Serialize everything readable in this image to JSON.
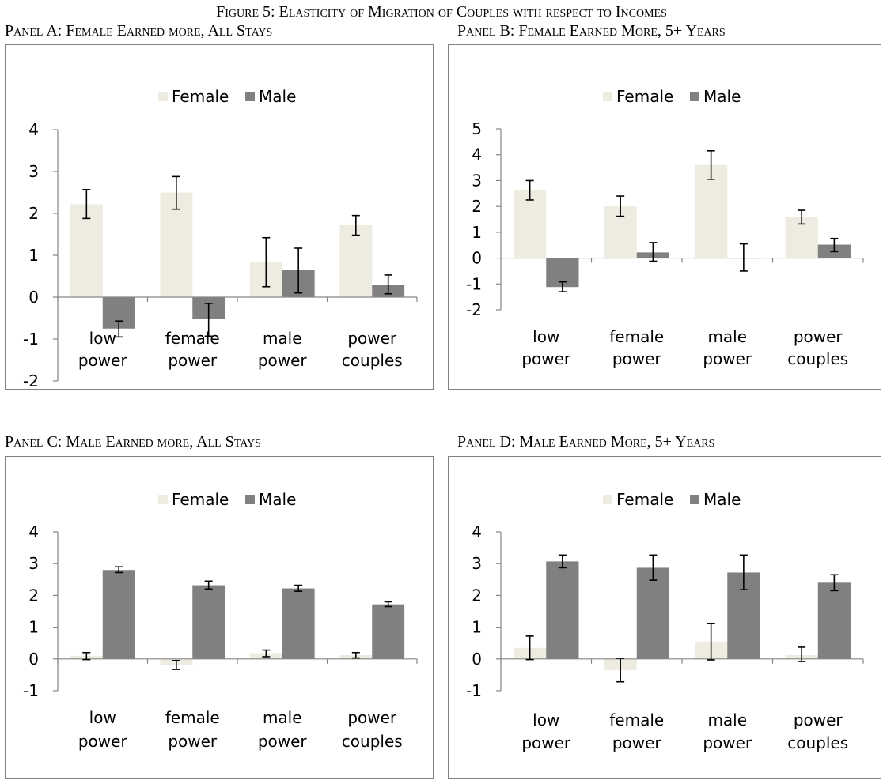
{
  "figure_title": "Figure 5: Elasticity of Migration of Couples with respect to Incomes",
  "colors": {
    "female": "#eeece1",
    "male": "#808080",
    "axis": "#868686",
    "error": "#000000"
  },
  "chart_data": [
    {
      "type": "bar",
      "title": "Panel A: Female Earned more, All Stays",
      "legend_position": "top",
      "categories": [
        [
          "low",
          "power"
        ],
        [
          "female",
          "power"
        ],
        [
          "male",
          "power"
        ],
        [
          "power",
          "couples"
        ]
      ],
      "series": [
        {
          "name": "Female",
          "values": [
            2.22,
            2.5,
            0.85,
            1.72
          ],
          "err_low": [
            1.88,
            2.1,
            0.25,
            1.48
          ],
          "err_high": [
            2.57,
            2.88,
            1.42,
            1.95
          ]
        },
        {
          "name": "Male",
          "values": [
            -0.75,
            -0.52,
            0.65,
            0.3
          ],
          "err_low": [
            -0.95,
            -0.93,
            0.1,
            0.08
          ],
          "err_high": [
            -0.57,
            -0.15,
            1.17,
            0.53
          ]
        }
      ],
      "ylim": [
        -2,
        4
      ],
      "yticks": [
        -2,
        -1,
        0,
        1,
        2,
        3,
        4
      ],
      "grid": false
    },
    {
      "type": "bar",
      "title": "Panel B: Female Earned More, 5+ Years",
      "legend_position": "top",
      "categories": [
        [
          "low",
          "power"
        ],
        [
          "female",
          "power"
        ],
        [
          "male",
          "power"
        ],
        [
          "power",
          "couples"
        ]
      ],
      "series": [
        {
          "name": "Female",
          "values": [
            2.62,
            2.0,
            3.6,
            1.6
          ],
          "err_low": [
            2.25,
            1.62,
            3.05,
            1.32
          ],
          "err_high": [
            3.0,
            2.4,
            4.15,
            1.85
          ]
        },
        {
          "name": "Male",
          "values": [
            -1.12,
            0.22,
            0.0,
            0.52
          ],
          "err_low": [
            -1.3,
            -0.12,
            -0.5,
            0.25
          ],
          "err_high": [
            -0.92,
            0.6,
            0.55,
            0.76
          ]
        }
      ],
      "ylim": [
        -2,
        5
      ],
      "yticks": [
        -2,
        -1,
        0,
        1,
        2,
        3,
        4,
        5
      ],
      "grid": false
    },
    {
      "type": "bar",
      "title": "Panel C: Male Earned more, All Stays",
      "legend_position": "top",
      "categories": [
        [
          "low",
          "power"
        ],
        [
          "female",
          "power"
        ],
        [
          "male",
          "power"
        ],
        [
          "power",
          "couples"
        ]
      ],
      "series": [
        {
          "name": "Female",
          "values": [
            0.1,
            -0.2,
            0.18,
            0.12
          ],
          "err_low": [
            -0.02,
            -0.33,
            0.07,
            0.03
          ],
          "err_high": [
            0.2,
            -0.05,
            0.28,
            0.2
          ]
        },
        {
          "name": "Male",
          "values": [
            2.8,
            2.32,
            2.22,
            1.72
          ],
          "err_low": [
            2.72,
            2.2,
            2.13,
            1.65
          ],
          "err_high": [
            2.9,
            2.45,
            2.32,
            1.8
          ]
        }
      ],
      "ylim": [
        -1,
        4
      ],
      "yticks": [
        -1,
        0,
        1,
        2,
        3,
        4
      ],
      "grid": false
    },
    {
      "type": "bar",
      "title": "Panel D: Male Earned More, 5+ Years",
      "legend_position": "top",
      "categories": [
        [
          "low",
          "power"
        ],
        [
          "female",
          "power"
        ],
        [
          "male",
          "power"
        ],
        [
          "power",
          "couples"
        ]
      ],
      "series": [
        {
          "name": "Female",
          "values": [
            0.35,
            -0.35,
            0.55,
            0.12
          ],
          "err_low": [
            -0.02,
            -0.72,
            -0.03,
            -0.08
          ],
          "err_high": [
            0.72,
            0.02,
            1.12,
            0.37
          ]
        },
        {
          "name": "Male",
          "values": [
            3.07,
            2.87,
            2.72,
            2.4
          ],
          "err_low": [
            2.87,
            2.48,
            2.18,
            2.15
          ],
          "err_high": [
            3.27,
            3.27,
            3.27,
            2.65
          ]
        }
      ],
      "ylim": [
        -1,
        4
      ],
      "yticks": [
        -1,
        0,
        1,
        2,
        3,
        4
      ],
      "grid": false
    }
  ]
}
